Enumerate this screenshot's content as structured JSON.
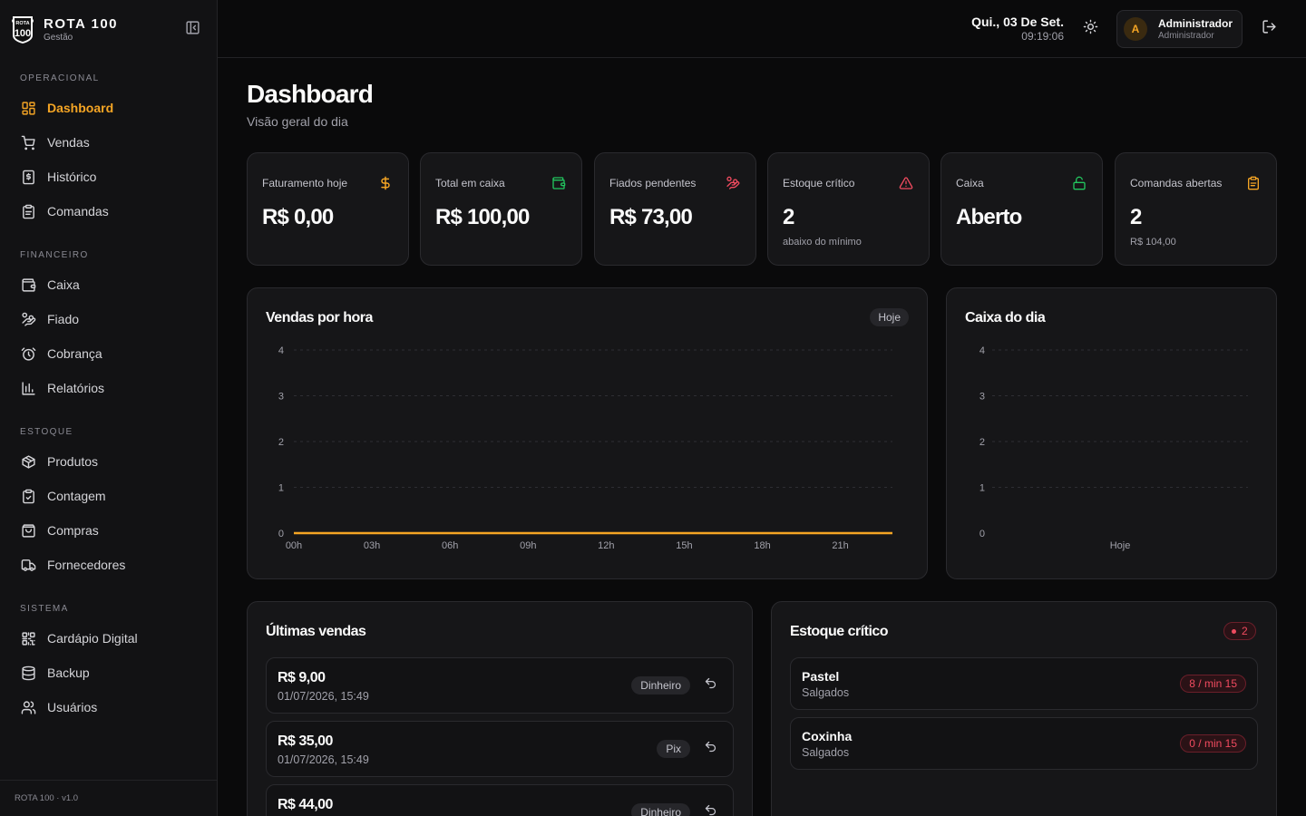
{
  "brand": {
    "name": "ROTA 100",
    "subtitle": "Gestão",
    "logo_text_top": "ROTA",
    "logo_text_main": "100"
  },
  "colors": {
    "accent": "#f5a524",
    "success": "#22c55e",
    "danger": "#f04b5f",
    "background": "#0a0a0b"
  },
  "sidebar": {
    "sections": [
      {
        "label": "OPERACIONAL",
        "items": [
          {
            "label": "Dashboard",
            "icon": "dashboard-icon",
            "active": true
          },
          {
            "label": "Vendas",
            "icon": "cart-icon"
          },
          {
            "label": "Histórico",
            "icon": "receipt-icon"
          },
          {
            "label": "Comandas",
            "icon": "clipboard-icon"
          }
        ]
      },
      {
        "label": "FINANCEIRO",
        "items": [
          {
            "label": "Caixa",
            "icon": "wallet-icon"
          },
          {
            "label": "Fiado",
            "icon": "hand-coins-icon"
          },
          {
            "label": "Cobrança",
            "icon": "alarm-clock-icon"
          },
          {
            "label": "Relatórios",
            "icon": "bar-chart-icon"
          }
        ]
      },
      {
        "label": "ESTOQUE",
        "items": [
          {
            "label": "Produtos",
            "icon": "package-icon"
          },
          {
            "label": "Contagem",
            "icon": "clipboard-check-icon"
          },
          {
            "label": "Compras",
            "icon": "shopping-bag-icon"
          },
          {
            "label": "Fornecedores",
            "icon": "truck-icon"
          }
        ]
      },
      {
        "label": "SISTEMA",
        "items": [
          {
            "label": "Cardápio Digital",
            "icon": "qr-code-icon"
          },
          {
            "label": "Backup",
            "icon": "database-icon"
          },
          {
            "label": "Usuários",
            "icon": "users-icon"
          }
        ]
      }
    ],
    "footer": "ROTA 100 · v1.0"
  },
  "topbar": {
    "date": "Qui., 03 De Set.",
    "time": "09:19:06",
    "user": {
      "initial": "A",
      "name": "Administrador",
      "role": "Administrador"
    }
  },
  "page": {
    "title": "Dashboard",
    "subtitle": "Visão geral do dia"
  },
  "stats": [
    {
      "label": "Faturamento hoje",
      "value": "R$ 0,00",
      "sub": "",
      "icon": "dollar-icon"
    },
    {
      "label": "Total em caixa",
      "value": "R$ 100,00",
      "sub": "",
      "icon": "wallet-icon"
    },
    {
      "label": "Fiados pendentes",
      "value": "R$ 73,00",
      "sub": "",
      "icon": "hand-coins-icon"
    },
    {
      "label": "Estoque crítico",
      "value": "2",
      "sub": "abaixo do mínimo",
      "icon": "warning-triangle-icon"
    },
    {
      "label": "Caixa",
      "value": "Aberto",
      "sub": "",
      "icon": "unlock-icon"
    },
    {
      "label": "Comandas abertas",
      "value": "2",
      "sub": "R$ 104,00",
      "icon": "clipboard-icon"
    }
  ],
  "sales_chart": {
    "title": "Vendas por hora",
    "badge": "Hoje"
  },
  "cash_chart": {
    "title": "Caixa do dia"
  },
  "chart_data": [
    {
      "type": "line",
      "title": "Vendas por hora",
      "x": [
        "00h",
        "01h",
        "02h",
        "03h",
        "04h",
        "05h",
        "06h",
        "07h",
        "08h",
        "09h",
        "10h",
        "11h",
        "12h",
        "13h",
        "14h",
        "15h",
        "16h",
        "17h",
        "18h",
        "19h",
        "20h",
        "21h",
        "22h",
        "23h"
      ],
      "x_tick_labels": [
        "00h",
        "03h",
        "06h",
        "09h",
        "12h",
        "15h",
        "18h",
        "21h"
      ],
      "series": [
        {
          "values": [
            0,
            0,
            0,
            0,
            0,
            0,
            0,
            0,
            0,
            0,
            0,
            0,
            0,
            0,
            0,
            0,
            0,
            0,
            0,
            0,
            0,
            0,
            0,
            0
          ],
          "color": "#f5a524"
        }
      ],
      "y_ticks": [
        "0",
        "1",
        "2",
        "3",
        "4"
      ],
      "ylim": [
        0,
        4
      ],
      "grid": true
    },
    {
      "type": "bar",
      "title": "Caixa do dia",
      "categories": [
        "Hoje"
      ],
      "series": [
        {
          "values": [
            0
          ]
        }
      ],
      "y_ticks": [
        "0",
        "1",
        "2",
        "3",
        "4"
      ],
      "ylim": [
        0,
        4
      ],
      "grid": true
    }
  ],
  "recent_sales": {
    "title": "Últimas vendas",
    "items": [
      {
        "amount": "R$ 9,00",
        "date": "01/07/2026, 15:49",
        "method": "Dinheiro"
      },
      {
        "amount": "R$ 35,00",
        "date": "01/07/2026, 15:49",
        "method": "Pix"
      },
      {
        "amount": "R$ 44,00",
        "date": "",
        "method": "Dinheiro"
      }
    ]
  },
  "critical_stock": {
    "title": "Estoque crítico",
    "count": "2",
    "items": [
      {
        "name": "Pastel",
        "category": "Salgados",
        "badge": "8 / min 15"
      },
      {
        "name": "Coxinha",
        "category": "Salgados",
        "badge": "0 / min 15"
      }
    ]
  }
}
